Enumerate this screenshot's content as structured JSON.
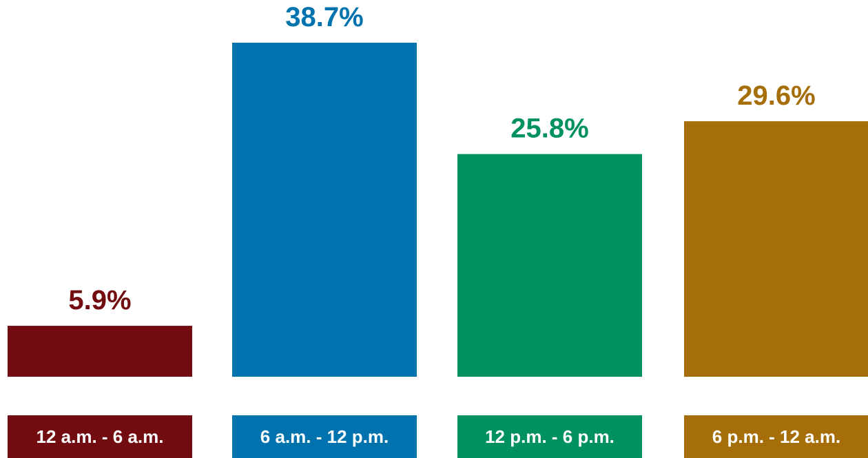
{
  "chart_data": {
    "type": "bar",
    "categories": [
      "12 a.m. - 6 a.m.",
      "6 a.m. - 12 p.m.",
      "12 p.m. - 6 p.m.",
      "6 p.m. - 12 a.m."
    ],
    "values": [
      5.9,
      38.7,
      25.8,
      29.6
    ],
    "value_labels": [
      "5.9%",
      "38.7%",
      "25.8%",
      "29.6%"
    ],
    "colors": [
      "#730C10",
      "#0072AE",
      "#009160",
      "#A66E09"
    ],
    "title": "",
    "xlabel": "",
    "ylabel": "",
    "ylim": [
      0,
      38.7
    ],
    "grid": false,
    "legend": "none"
  }
}
